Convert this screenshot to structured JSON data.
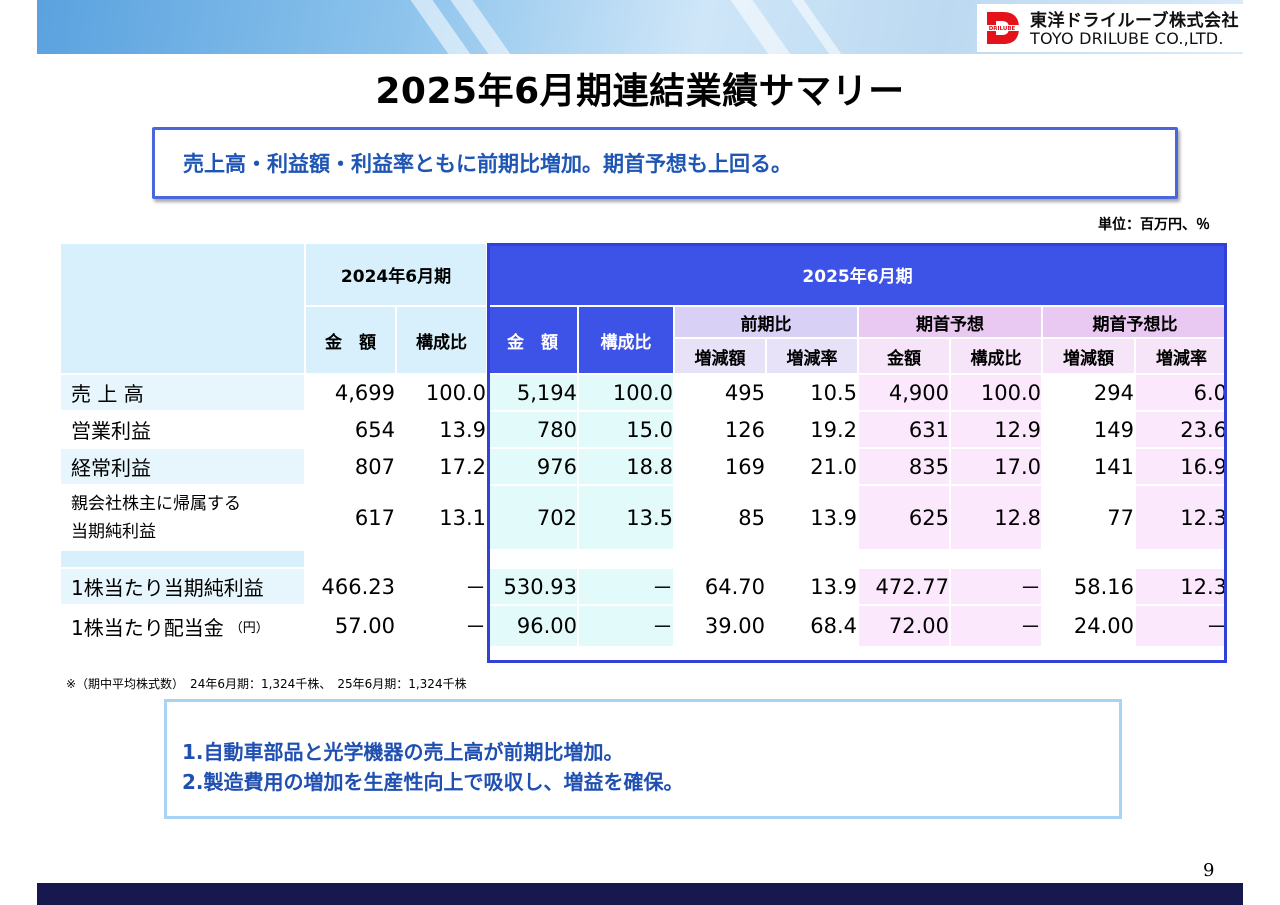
{
  "company": {
    "name_jp": "東洋ドライルーブ株式会社",
    "name_en": "TOYO DRILUBE CO.,LTD.",
    "mark_text": "DRILUBE"
  },
  "title": "2025年6月期連結業績サマリー",
  "summary": "売上高・利益額・利益率ともに前期比増加。期首予想も上回る。",
  "unit": "単位：百万円、％",
  "table": {
    "header": {
      "prev_period": "2024年6月期",
      "curr_period": "2025年6月期",
      "amount": "金　額",
      "ratio": "構成比",
      "yoy": "前期比",
      "forecast": "期首予想",
      "vs_forecast": "期首予想比",
      "change_amount": "増減額",
      "change_rate": "増減率",
      "forecast_amount": "金額"
    },
    "rows": [
      {
        "label": "売 上 高",
        "v": [
          "4,699",
          "100.0",
          "5,194",
          "100.0",
          "495",
          "10.5",
          "4,900",
          "100.0",
          "294",
          "6.0"
        ]
      },
      {
        "label": "営業利益",
        "v": [
          "654",
          "13.9",
          "780",
          "15.0",
          "126",
          "19.2",
          "631",
          "12.9",
          "149",
          "23.6"
        ]
      },
      {
        "label": "経常利益",
        "v": [
          "807",
          "17.2",
          "976",
          "18.8",
          "169",
          "21.0",
          "835",
          "17.0",
          "141",
          "16.9"
        ]
      },
      {
        "label_line1": "親会社株主に帰属する",
        "label_line2": "当期純利益",
        "v": [
          "617",
          "13.1",
          "702",
          "13.5",
          "85",
          "13.9",
          "625",
          "12.8",
          "77",
          "12.3"
        ]
      },
      {
        "label": "1株当たり当期純利益",
        "v": [
          "466.23",
          "－",
          "530.93",
          "－",
          "64.70",
          "13.9",
          "472.77",
          "－",
          "58.16",
          "12.3"
        ]
      },
      {
        "label": "1株当たり配当金",
        "label_suffix": "（円）",
        "v": [
          "57.00",
          "－",
          "96.00",
          "－",
          "39.00",
          "68.4",
          "72.00",
          "－",
          "24.00",
          "－"
        ]
      }
    ]
  },
  "footnote": "※（期中平均株式数）　24年6月期：1,324千株、　25年6月期：1,324千株",
  "bullets": [
    "1.自動車部品と光学機器の売上高が前期比増加。",
    "2.製造費用の増加を生産性向上で吸収し、増益を確保。"
  ],
  "page_number": "9"
}
